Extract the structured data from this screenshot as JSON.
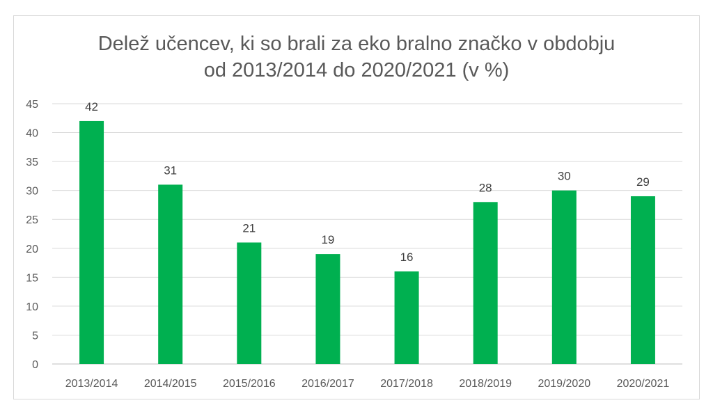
{
  "chart_data": {
    "type": "bar",
    "title_lines": [
      "Delež učencev, ki so brali za eko bralno značko v obdobju",
      "od 2013/2014 do 2020/2021 (v %)"
    ],
    "categories": [
      "2013/2014",
      "2014/2015",
      "2015/2016",
      "2016/2017",
      "2017/2018",
      "2018/2019",
      "2019/2020",
      "2020/2021"
    ],
    "values": [
      42,
      31,
      21,
      19,
      16,
      28,
      30,
      29
    ],
    "data_labels": [
      "42",
      "31",
      "21",
      "19",
      "16",
      "28",
      "30",
      "29"
    ],
    "ylim": [
      0,
      45
    ],
    "y_ticks": [
      "0",
      "5",
      "10",
      "15",
      "20",
      "25",
      "30",
      "35",
      "40",
      "45"
    ],
    "grid": true,
    "legend": "none",
    "bar_color": "#00b050",
    "gridline_color": "#d9d9d9"
  }
}
